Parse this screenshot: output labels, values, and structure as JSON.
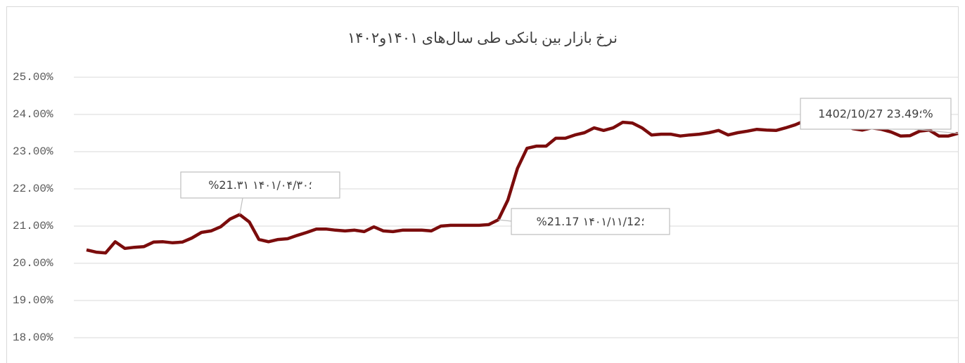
{
  "chart_data": {
    "type": "line",
    "title": "نرخ بازار بین بانکی طی سال‌های ۱۴۰۱و۱۴۰۲",
    "categories": [
      null,
      null,
      null,
      null,
      null,
      null,
      null,
      null,
      null,
      null,
      null,
      null,
      null,
      null,
      null,
      null,
      null,
      null,
      null,
      null,
      null,
      null,
      null,
      null,
      null,
      null,
      null,
      null,
      null,
      null,
      null,
      null,
      null,
      null,
      null,
      null,
      null,
      null,
      null,
      null,
      null,
      null,
      null,
      null,
      null,
      null,
      null,
      null,
      null,
      null,
      null,
      null,
      null,
      null,
      null,
      null,
      null,
      null,
      null,
      null,
      null,
      null,
      null,
      null,
      null,
      null,
      null,
      null,
      null,
      null,
      null,
      null,
      null,
      null,
      null,
      null,
      null,
      null,
      null,
      null,
      null,
      null,
      null,
      null,
      null,
      null,
      null,
      null,
      null,
      null,
      null,
      null
    ],
    "series": [
      {
        "color": "#7b0c0c",
        "values": [
          20.36,
          20.3,
          20.28,
          20.58,
          20.4,
          20.43,
          20.45,
          20.57,
          20.58,
          20.55,
          20.57,
          20.68,
          20.83,
          20.87,
          20.98,
          21.19,
          21.31,
          21.11,
          20.64,
          20.58,
          20.64,
          20.66,
          20.75,
          20.83,
          20.92,
          20.92,
          20.89,
          20.87,
          20.89,
          20.85,
          20.98,
          20.87,
          20.85,
          20.89,
          20.89,
          20.89,
          20.87,
          21.0,
          21.02,
          21.02,
          21.02,
          21.02,
          21.04,
          21.17,
          21.7,
          22.55,
          23.09,
          23.15,
          23.15,
          23.36,
          23.36,
          23.45,
          23.51,
          23.64,
          23.57,
          23.64,
          23.79,
          23.77,
          23.64,
          23.45,
          23.47,
          23.47,
          23.42,
          23.45,
          23.47,
          23.51,
          23.57,
          23.45,
          23.51,
          23.55,
          23.6,
          23.58,
          23.57,
          23.64,
          23.72,
          23.83,
          23.77,
          23.79,
          23.75,
          23.74,
          23.62,
          23.58,
          23.64,
          23.6,
          23.53,
          23.42,
          23.43,
          23.55,
          23.58,
          23.42,
          23.42,
          23.49
        ]
      }
    ],
    "ylim": [
      18,
      25
    ],
    "yticks": [
      {
        "value": 18,
        "label": "18.00%"
      },
      {
        "value": 19,
        "label": "19.00%"
      },
      {
        "value": 20,
        "label": "20.00%"
      },
      {
        "value": 21,
        "label": "21.00%"
      },
      {
        "value": 22,
        "label": "22.00%"
      },
      {
        "value": 23,
        "label": "23.00%"
      },
      {
        "value": 24,
        "label": "24.00%"
      },
      {
        "value": 25,
        "label": "25.00%"
      }
    ],
    "grid": true,
    "annotations": [
      {
        "text": "%21.۳۱ ؛۱۴۰۱/۰۴/۳۰"
      },
      {
        "text": "%21.17 ؛۱۴۰۱/۱۱/12"
      },
      {
        "text": "1402/10/27 ؛23.49%"
      }
    ]
  }
}
